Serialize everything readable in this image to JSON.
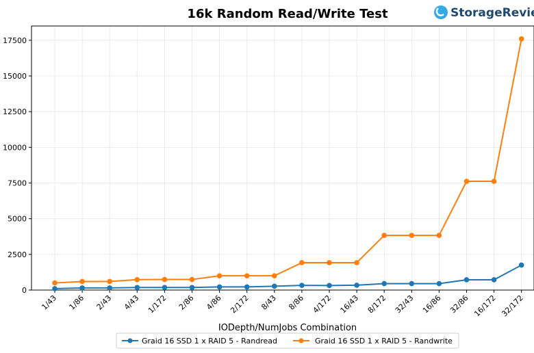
{
  "chart_data": {
    "type": "line",
    "title": "16k Random Read/Write Test",
    "xlabel": "IODepth/NumJobs Combination",
    "ylabel": "",
    "categories": [
      "1/43",
      "1/86",
      "2/43",
      "4/43",
      "1/172",
      "2/86",
      "4/86",
      "2/172",
      "8/43",
      "8/86",
      "4/172",
      "16/43",
      "8/172",
      "32/43",
      "16/86",
      "32/86",
      "16/172",
      "32/172"
    ],
    "series": [
      {
        "name": "Graid 16 SSD 1 x RAID 5 - Randread",
        "color": "#1f77b4",
        "values": [
          100,
          150,
          150,
          180,
          180,
          180,
          220,
          220,
          270,
          330,
          320,
          340,
          450,
          450,
          450,
          720,
          720,
          1750
        ]
      },
      {
        "name": "Graid 16 SSD 1 x RAID 5 - Randwrite",
        "color": "#ff7f0e",
        "values": [
          500,
          600,
          600,
          730,
          740,
          740,
          1000,
          1000,
          1000,
          1920,
          1920,
          1920,
          3830,
          3830,
          3830,
          7620,
          7620,
          17600
        ]
      }
    ],
    "ylim": [
      0,
      18500
    ],
    "yticks": [
      0,
      2500,
      5000,
      7500,
      10000,
      12500,
      15000,
      17500
    ],
    "ytick_labels": [
      "0",
      "2500",
      "5000",
      "7500",
      "10000",
      "12500",
      "15000",
      "17500"
    ],
    "grid": true,
    "legend_position": "bottom-center"
  },
  "logo": {
    "text": "StorageReview",
    "brand_color": "#1e4a6d",
    "icon_color": "#35a9e1",
    "icon": "storagereview-logo-icon"
  }
}
